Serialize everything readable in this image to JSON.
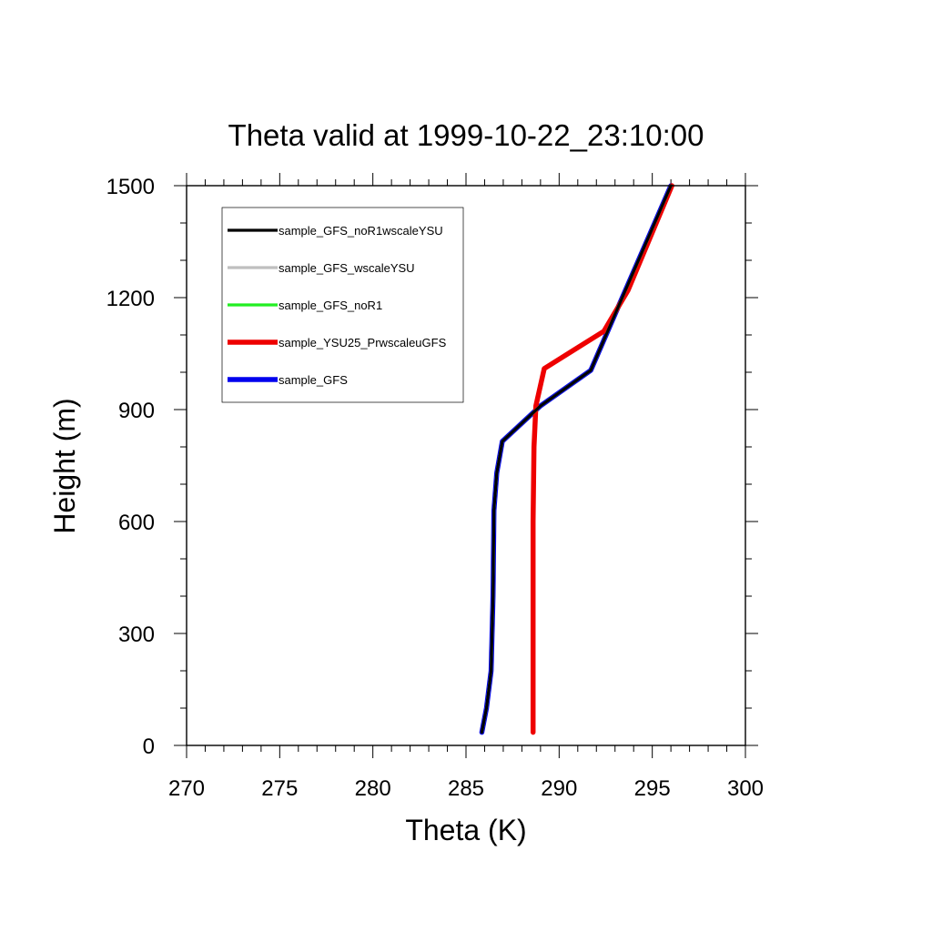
{
  "chart_data": {
    "type": "line",
    "title": "Theta valid at 1999-10-22_23:10:00",
    "xlabel": "Theta (K)",
    "ylabel": "Height (m)",
    "xlim": [
      270,
      300
    ],
    "ylim": [
      0,
      1500
    ],
    "xticks": [
      270,
      275,
      280,
      285,
      290,
      295,
      300
    ],
    "yticks": [
      0,
      300,
      600,
      900,
      1200,
      1500
    ],
    "x_tick_labels": [
      "270",
      "275",
      "280",
      "285",
      "290",
      "295",
      "300"
    ],
    "y_tick_labels": [
      "0",
      "300",
      "600",
      "900",
      "1200",
      "1500"
    ],
    "grid": false,
    "legend_position": "top-left",
    "series": [
      {
        "name": "sample_GFS_noR1wscaleYSU",
        "color": "#000000",
        "points": [
          [
            285.85,
            35
          ],
          [
            286.1,
            100
          ],
          [
            286.35,
            200
          ],
          [
            286.45,
            400
          ],
          [
            286.5,
            630
          ],
          [
            286.65,
            730
          ],
          [
            286.95,
            815
          ],
          [
            289.0,
            910
          ],
          [
            291.7,
            1005
          ],
          [
            293.0,
            1155
          ],
          [
            296.0,
            1500
          ]
        ]
      },
      {
        "name": "sample_GFS_wscaleYSU",
        "color": "#bfbfbf",
        "points": [
          [
            285.85,
            35
          ],
          [
            286.1,
            100
          ],
          [
            286.35,
            200
          ],
          [
            286.45,
            400
          ],
          [
            286.5,
            630
          ],
          [
            286.65,
            730
          ],
          [
            286.95,
            815
          ],
          [
            289.0,
            910
          ],
          [
            291.7,
            1005
          ],
          [
            293.0,
            1155
          ],
          [
            296.0,
            1500
          ]
        ]
      },
      {
        "name": "sample_GFS_noR1",
        "color": "#22ee22",
        "points": [
          [
            285.85,
            35
          ],
          [
            286.1,
            100
          ],
          [
            286.35,
            200
          ],
          [
            286.45,
            400
          ],
          [
            286.5,
            630
          ],
          [
            286.65,
            730
          ],
          [
            286.95,
            815
          ],
          [
            289.0,
            910
          ],
          [
            291.7,
            1005
          ],
          [
            293.0,
            1155
          ],
          [
            296.0,
            1500
          ]
        ]
      },
      {
        "name": "sample_YSU25_PrwscaleuGFS",
        "color": "#ee0000",
        "points": [
          [
            288.6,
            35
          ],
          [
            288.6,
            300
          ],
          [
            288.6,
            600
          ],
          [
            288.65,
            800
          ],
          [
            288.75,
            910
          ],
          [
            289.2,
            1010
          ],
          [
            292.4,
            1110
          ],
          [
            293.7,
            1220
          ],
          [
            296.05,
            1500
          ]
        ]
      },
      {
        "name": "sample_GFS",
        "color": "#0000ee",
        "points": [
          [
            285.85,
            35
          ],
          [
            286.1,
            100
          ],
          [
            286.35,
            200
          ],
          [
            286.45,
            400
          ],
          [
            286.5,
            630
          ],
          [
            286.65,
            730
          ],
          [
            286.95,
            815
          ],
          [
            289.0,
            910
          ],
          [
            291.7,
            1005
          ],
          [
            293.0,
            1155
          ],
          [
            296.0,
            1500
          ]
        ]
      }
    ]
  }
}
